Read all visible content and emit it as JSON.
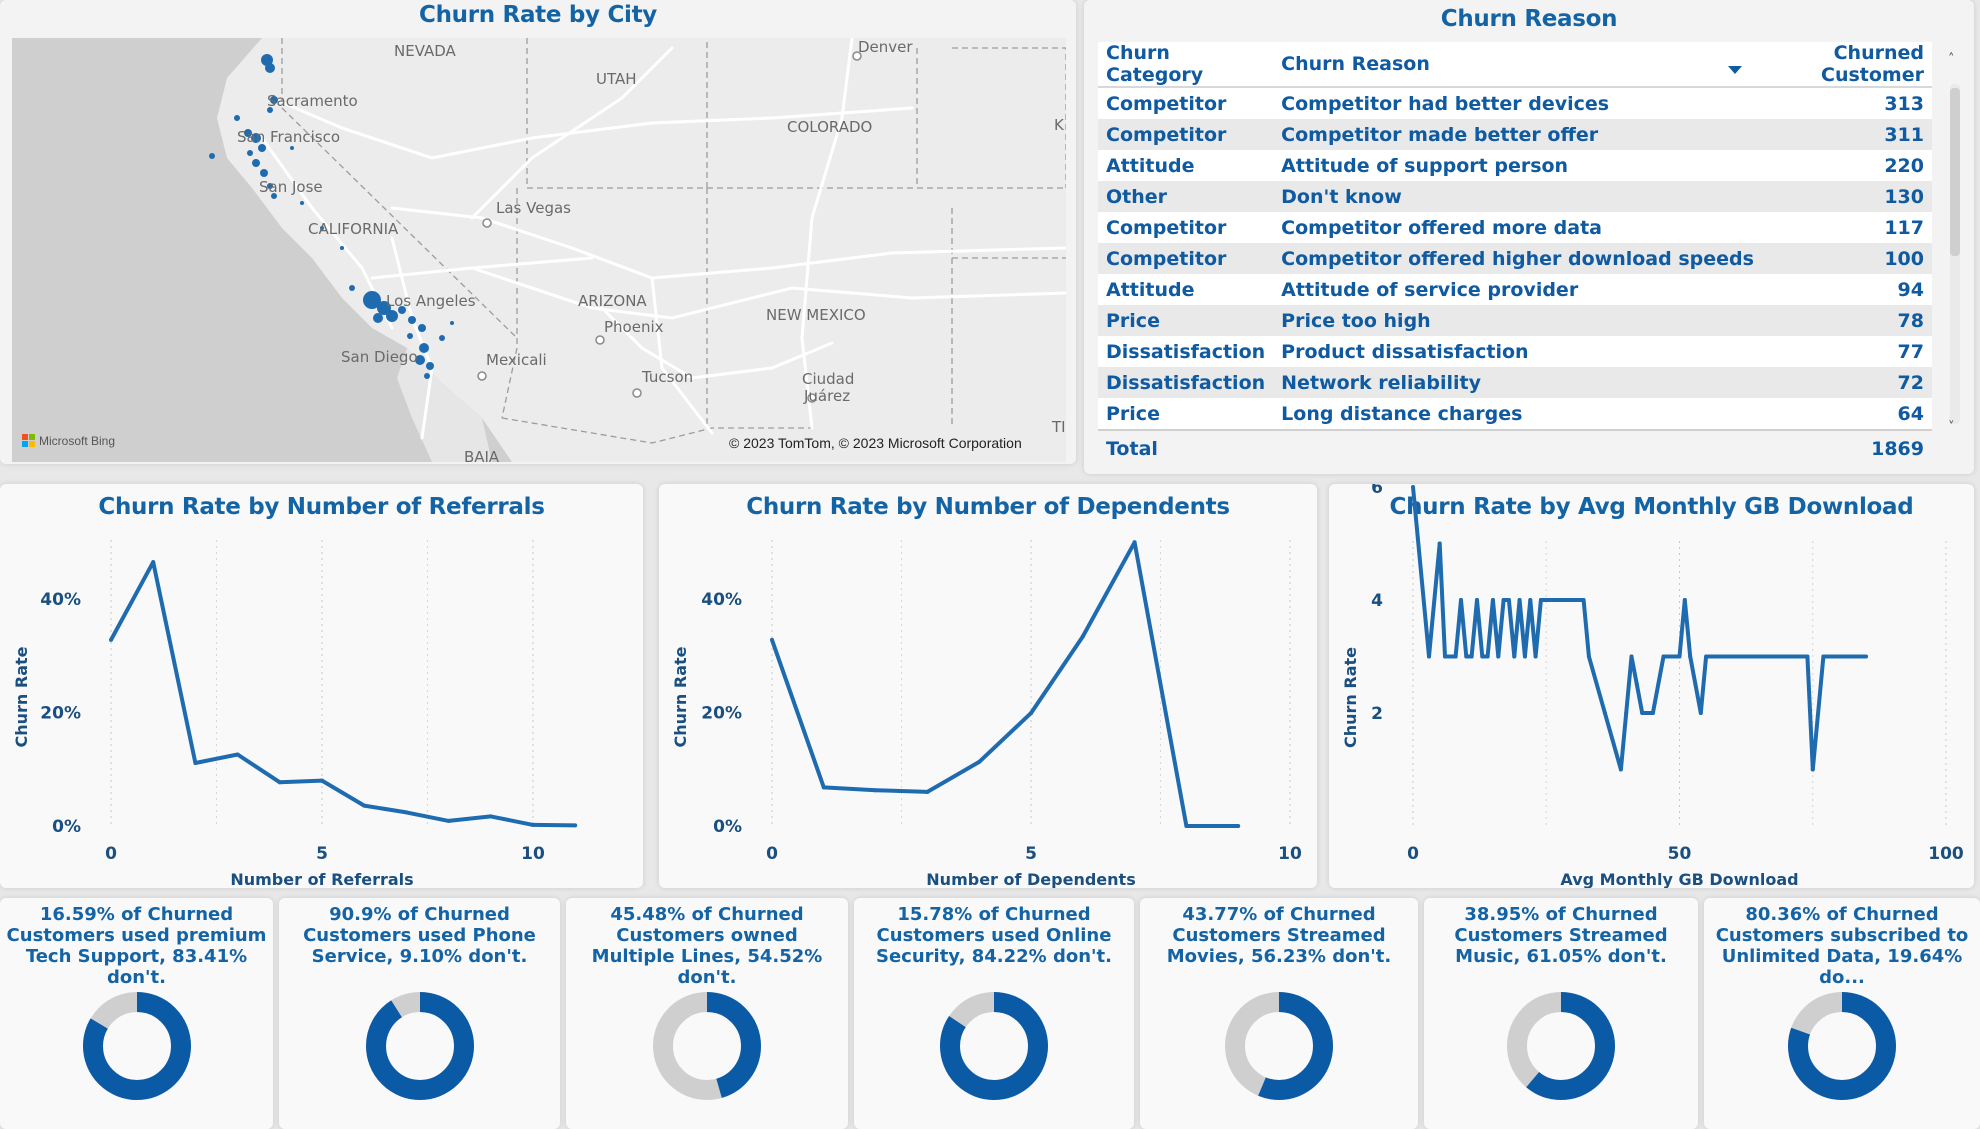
{
  "map": {
    "title": "Churn Rate by City",
    "labels": [
      "NEVADA",
      "UTAH",
      "Denver",
      "COLORADO",
      "Sacramento",
      "San Francisco",
      "San Jose",
      "CALIFORNIA",
      "Las Vegas",
      "Los Angeles",
      "ARIZONA",
      "Phoenix",
      "NEW MEXICO",
      "San Diego",
      "Mexicali",
      "Tucson",
      "Ciudad",
      "Juárez",
      "BAJA",
      "K",
      "TI"
    ],
    "brand": "Microsoft Bing",
    "copyright": "© 2023 TomTom, © 2023 Microsoft Corporation"
  },
  "reason_table": {
    "title": "Churn Reason",
    "headers": [
      "Churn Category",
      "Churn Reason",
      "Churned Customer"
    ],
    "rows": [
      {
        "category": "Competitor",
        "reason": "Competitor had better devices",
        "count": "313"
      },
      {
        "category": "Competitor",
        "reason": "Competitor made better offer",
        "count": "311"
      },
      {
        "category": "Attitude",
        "reason": "Attitude of support person",
        "count": "220"
      },
      {
        "category": "Other",
        "reason": "Don't know",
        "count": "130"
      },
      {
        "category": "Competitor",
        "reason": "Competitor offered more data",
        "count": "117"
      },
      {
        "category": "Competitor",
        "reason": "Competitor offered higher download speeds",
        "count": "100"
      },
      {
        "category": "Attitude",
        "reason": "Attitude of service provider",
        "count": "94"
      },
      {
        "category": "Price",
        "reason": "Price too high",
        "count": "78"
      },
      {
        "category": "Dissatisfaction",
        "reason": "Product dissatisfaction",
        "count": "77"
      },
      {
        "category": "Dissatisfaction",
        "reason": "Network reliability",
        "count": "72"
      },
      {
        "category": "Price",
        "reason": "Long distance charges",
        "count": "64"
      }
    ],
    "total_label": "Total",
    "total_value": "1869",
    "scroll_up": "˄",
    "scroll_down": "˅"
  },
  "colors": {
    "accent": "#1464a5",
    "line": "#1f6bb0",
    "donut_fill": "#0b5aa6",
    "donut_rest": "#cfcfcf"
  },
  "chart_data": [
    {
      "type": "line",
      "title": "Churn Rate by Number of Referrals",
      "xlabel": "Number of Referrals",
      "ylabel": "Churn Rate",
      "xlim": [
        0,
        12
      ],
      "ylim": [
        0,
        50
      ],
      "xticks": [
        {
          "v": 0,
          "label": "0"
        },
        {
          "v": 5,
          "label": "5"
        },
        {
          "v": 10,
          "label": "10"
        }
      ],
      "yticks": [
        {
          "v": 0,
          "label": "0%"
        },
        {
          "v": 20,
          "label": "20%"
        },
        {
          "v": 40,
          "label": "40%"
        }
      ],
      "x": [
        0,
        1,
        2,
        3,
        4,
        5,
        6,
        7,
        8,
        9,
        10,
        11
      ],
      "y": [
        32.8,
        46.5,
        11.1,
        12.6,
        7.7,
        8.0,
        3.6,
        2.4,
        0.9,
        1.7,
        0.2,
        0.1
      ]
    },
    {
      "type": "line",
      "title": "Churn Rate by Number of Dependents",
      "xlabel": "Number of Dependents",
      "ylabel": "Churn Rate",
      "xlim": [
        0,
        10
      ],
      "ylim": [
        0,
        50
      ],
      "xticks": [
        {
          "v": 0,
          "label": "0"
        },
        {
          "v": 5,
          "label": "5"
        },
        {
          "v": 10,
          "label": "10"
        }
      ],
      "yticks": [
        {
          "v": 0,
          "label": "0%"
        },
        {
          "v": 20,
          "label": "20%"
        },
        {
          "v": 40,
          "label": "40%"
        }
      ],
      "x": [
        0,
        1,
        2,
        3,
        4,
        5,
        6,
        7,
        8,
        9
      ],
      "y": [
        32.8,
        6.8,
        6.3,
        6.0,
        11.3,
        19.9,
        33.4,
        50.0,
        0,
        0
      ]
    },
    {
      "type": "line",
      "title": "Churn Rate by Avg Monthly GB Download",
      "xlabel": "Avg Monthly GB Download",
      "ylabel": "Churn Rate",
      "xlim": [
        0,
        100
      ],
      "ylim": [
        0,
        6.2
      ],
      "xticks": [
        {
          "v": 0,
          "label": "0"
        },
        {
          "v": 50,
          "label": "50"
        },
        {
          "v": 100,
          "label": "100"
        }
      ],
      "yticks": [
        {
          "v": 2,
          "label": "2"
        },
        {
          "v": 4,
          "label": "4"
        },
        {
          "v": 6,
          "label": "6"
        }
      ],
      "x": [
        0,
        3,
        5,
        6,
        8,
        9,
        10,
        11,
        12,
        13,
        14,
        15,
        16,
        17,
        18,
        19,
        20,
        21,
        22,
        23,
        24,
        25,
        26,
        27,
        29,
        30,
        31,
        32,
        33,
        36,
        39,
        40,
        41,
        42,
        43,
        45,
        47,
        48,
        49,
        50,
        51,
        52,
        53,
        54,
        55,
        56,
        57,
        58,
        59,
        60,
        62,
        63,
        64,
        65,
        66,
        69,
        72,
        74,
        75,
        77,
        80,
        85
      ],
      "y": [
        6,
        3,
        5,
        3,
        3,
        4,
        3,
        3,
        4,
        3,
        3,
        4,
        3,
        4,
        4,
        3,
        4,
        3,
        4,
        3,
        4,
        4,
        4,
        4,
        4,
        4,
        4,
        4,
        3,
        2,
        1,
        2,
        3,
        2.5,
        2,
        2,
        3,
        3,
        3,
        3,
        4,
        3,
        2.5,
        2,
        3,
        3,
        3,
        3,
        3,
        3,
        3,
        3,
        3,
        3,
        3,
        3,
        3,
        3,
        1,
        3,
        3,
        3
      ]
    }
  ],
  "donuts": [
    {
      "text": "16.59% of Churned Customers used premium Tech Support, 83.41% don't.",
      "percent": 83.41
    },
    {
      "text": "90.9% of Churned Customers used Phone Service, 9.10% don't.",
      "percent": 90.9
    },
    {
      "text": "45.48% of Churned Customers owned Multiple Lines, 54.52% don't.",
      "percent": 45.48
    },
    {
      "text": "15.78% of Churned Customers used Online Security, 84.22% don't.",
      "percent": 84.22
    },
    {
      "text": "43.77% of Churned Customers Streamed Movies, 56.23% don't.",
      "percent": 56.23
    },
    {
      "text": "38.95% of Churned Customers Streamed Music, 61.05% don't.",
      "percent": 61.05
    },
    {
      "text": "80.36% of Churned Customers subscribed to Unlimited Data, 19.64% do...",
      "percent": 80.36
    }
  ]
}
